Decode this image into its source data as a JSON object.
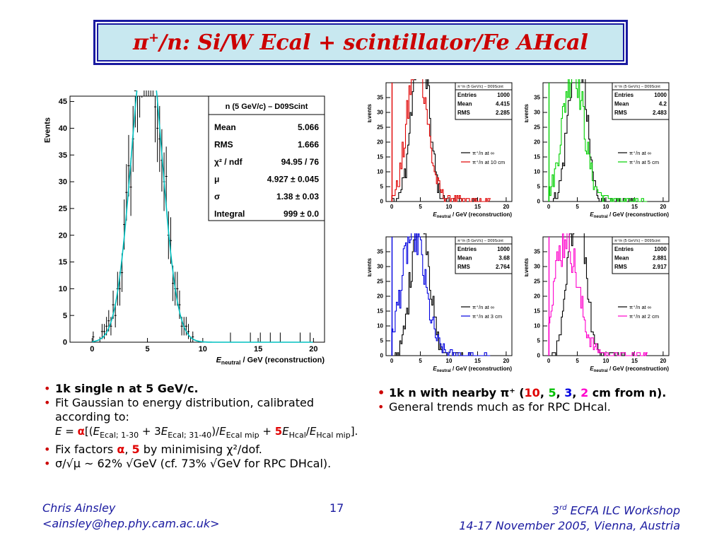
{
  "title": {
    "main_pre": "π",
    "main_sup": "+",
    "main_post": "/n: Si/W Ecal + scintillator/Fe AHcal"
  },
  "chart_data": [
    {
      "type": "histogram",
      "ylabel": "Events",
      "xlabel_main": "E",
      "xlabel_sub": "neutral",
      "xlabel_rest": " / GeV  (reconstruction)",
      "xlim": [
        -2,
        21
      ],
      "ylim": [
        0,
        46
      ],
      "xticks": [
        0,
        5,
        10,
        15,
        20
      ],
      "yticks": [
        0,
        5,
        10,
        15,
        20,
        25,
        30,
        35,
        40,
        45
      ],
      "stats": {
        "title": "n (5 GeV/c) – D09Scint",
        "rows": [
          {
            "label": "Mean",
            "value": "5.066"
          },
          {
            "label": "RMS",
            "value": "1.666"
          },
          {
            "label": "χ² / ndf",
            "value": "94.95 / 76"
          },
          {
            "label": "μ",
            "value": "4.927 ± 0.045"
          },
          {
            "label": "σ",
            "value": "1.38 ± 0.03"
          },
          {
            "label": "Integral",
            "value": "999 ± 0.0"
          }
        ]
      },
      "fit": {
        "type": "gaussian",
        "color": "#00c0c0",
        "mu": 4.927,
        "sigma": 1.38,
        "integral": 999
      },
      "entries": 999
    },
    {
      "type": "histogram",
      "ylabel": "Events",
      "xlabel_main": "E",
      "xlabel_sub": "neutral",
      "xlabel_rest": " / GeV  (reconstruction)",
      "xlim": [
        -1,
        21
      ],
      "ylim": [
        0,
        40
      ],
      "xticks": [
        0,
        5,
        10,
        15,
        20
      ],
      "yticks": [
        0,
        5,
        10,
        15,
        20,
        25,
        30,
        35
      ],
      "stats_title": "π⁺/n (5 GeV/c) – D09Scint",
      "stats": [
        {
          "label": "Entries",
          "value": "1000"
        },
        {
          "label": "Mean",
          "value": "4.415"
        },
        {
          "label": "RMS",
          "value": "2.285"
        }
      ],
      "series": [
        {
          "name": "π⁺/n at ∞",
          "color": "#000000",
          "mean": 5.0,
          "sigma": 1.45
        },
        {
          "name": "π⁺/n at 10 cm",
          "color": "#e00000",
          "mean": 4.415,
          "sigma": 2.285
        }
      ]
    },
    {
      "type": "histogram",
      "ylabel": "Events",
      "xlabel_main": "E",
      "xlabel_sub": "neutral",
      "xlabel_rest": " / GeV  (reconstruction)",
      "xlim": [
        -1,
        21
      ],
      "ylim": [
        0,
        40
      ],
      "xticks": [
        0,
        5,
        10,
        15,
        20
      ],
      "yticks": [
        0,
        5,
        10,
        15,
        20,
        25,
        30,
        35
      ],
      "stats_title": "π⁺/n (5 GeV/c) – D09Scint",
      "stats": [
        {
          "label": "Entries",
          "value": "1000"
        },
        {
          "label": "Mean",
          "value": "4.2"
        },
        {
          "label": "RMS",
          "value": "2.483"
        }
      ],
      "series": [
        {
          "name": "π⁺/n at ∞",
          "color": "#000000",
          "mean": 5.0,
          "sigma": 1.45
        },
        {
          "name": "π⁺/n at 5 cm",
          "color": "#00d000",
          "mean": 4.2,
          "sigma": 2.483
        }
      ]
    },
    {
      "type": "histogram",
      "ylabel": "Events",
      "xlabel_main": "E",
      "xlabel_sub": "neutral",
      "xlabel_rest": " / GeV  (reconstruction)",
      "xlim": [
        -1,
        21
      ],
      "ylim": [
        0,
        40
      ],
      "xticks": [
        0,
        5,
        10,
        15,
        20
      ],
      "yticks": [
        0,
        5,
        10,
        15,
        20,
        25,
        30,
        35
      ],
      "stats_title": "π⁺/n (5 GeV/c) – D09Scint",
      "stats": [
        {
          "label": "Entries",
          "value": "1000"
        },
        {
          "label": "Mean",
          "value": "3.68"
        },
        {
          "label": "RMS",
          "value": "2.764"
        }
      ],
      "series": [
        {
          "name": "π⁺/n at ∞",
          "color": "#000000",
          "mean": 5.0,
          "sigma": 1.45
        },
        {
          "name": "π⁺/n at 3 cm",
          "color": "#0000e0",
          "mean": 3.68,
          "sigma": 2.764
        }
      ]
    },
    {
      "type": "histogram",
      "ylabel": "Events",
      "xlabel_main": "E",
      "xlabel_sub": "neutral",
      "xlabel_rest": " / GeV  (reconstruction)",
      "xlim": [
        -1,
        21
      ],
      "ylim": [
        0,
        40
      ],
      "xticks": [
        0,
        5,
        10,
        15,
        20
      ],
      "yticks": [
        0,
        5,
        10,
        15,
        20,
        25,
        30,
        35
      ],
      "stats_title": "π⁺/n (5 GeV/c) – D09Scint",
      "stats": [
        {
          "label": "Entries",
          "value": "1000"
        },
        {
          "label": "Mean",
          "value": "2.881"
        },
        {
          "label": "RMS",
          "value": "2.917"
        }
      ],
      "series": [
        {
          "name": "π⁺/n at ∞",
          "color": "#000000",
          "mean": 5.0,
          "sigma": 1.45
        },
        {
          "name": "π⁺/n at 2 cm",
          "color": "#ff00cc",
          "mean": 2.881,
          "sigma": 2.917
        }
      ]
    }
  ],
  "left_bullets": {
    "b1": "1k single n at 5 GeV/c.",
    "b2a": "Fit Gaussian to energy distribution, calibrated",
    "b2b": "according to:",
    "formula": {
      "E": "E",
      "eq": " = ",
      "alpha": "α",
      "open": "[(",
      "E1": "E",
      "s1": "Ecal; 1-30",
      "plus3": " + 3",
      "E2": "E",
      "s2": "Ecal; 31-40",
      "div": ")/",
      "E3": "E",
      "s3": "Ecal mip",
      "plus": " + ",
      "five": "5",
      "E4": "E",
      "s4": "Hcal",
      "slash": "/",
      "E5": "E",
      "s5": "Hcal mip",
      "close": "]."
    },
    "b3_pre": "Fix factors ",
    "b3_alpha": "α",
    "b3_comma": ", ",
    "b3_five": "5",
    "b3_post": " by minimising χ²/dof.",
    "b4": "σ/√μ ~ 62% √GeV (cf. 73% √GeV for RPC DHcal)."
  },
  "right_bullets": {
    "b1_pre": "1k n with nearby π⁺ (",
    "n10": "10",
    "c1": ", ",
    "n5": "5",
    "c2": ", ",
    "n3": "3",
    "c3": ", ",
    "n2": "2",
    "b1_post": " cm from n).",
    "b2": "General trends much as for RPC DHcal."
  },
  "footer": {
    "author": "Chris Ainsley",
    "email": "<ainsley@hep.phy.cam.ac.uk>",
    "page": "17",
    "workshop_pre": "3",
    "workshop_sup": "rd",
    "workshop_post": " ECFA ILC Workshop",
    "dates": "14-17 November 2005, Vienna, Austria"
  }
}
